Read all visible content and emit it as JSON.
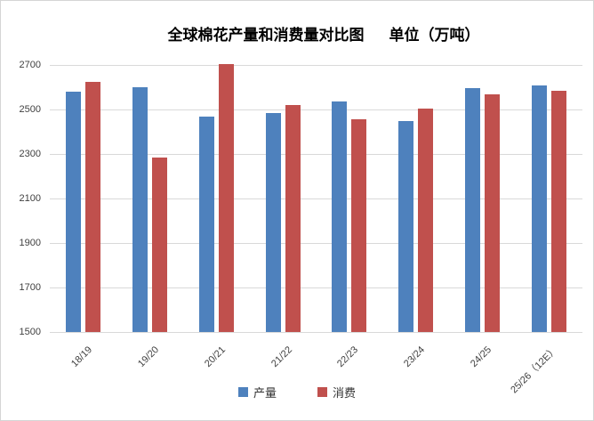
{
  "chart_data": {
    "type": "bar",
    "title": "全球棉花产量和消费量对比图",
    "unit_label": "单位（万吨）",
    "categories": [
      "18/19",
      "19/20",
      "20/21",
      "21/22",
      "22/23",
      "23/24",
      "24/25",
      "25/26（12E）"
    ],
    "series": [
      {
        "name": "产量",
        "color": "#4E81BD",
        "values": [
          2580,
          2600,
          2470,
          2485,
          2535,
          2450,
          2595,
          2610
        ]
      },
      {
        "name": "消费",
        "color": "#C0504D",
        "values": [
          2625,
          2285,
          2705,
          2520,
          2455,
          2505,
          2570,
          2585
        ]
      }
    ],
    "ylim": [
      1500,
      2700
    ],
    "yticks": [
      1500,
      1700,
      1900,
      2100,
      2300,
      2500,
      2700
    ],
    "grid": true,
    "legend_position": "bottom"
  },
  "colors": {
    "gridline": "#D9D9D9",
    "tick_label": "#404040",
    "title": "#000000",
    "border": "#D5D5D5",
    "background": "#FFFFFF"
  }
}
